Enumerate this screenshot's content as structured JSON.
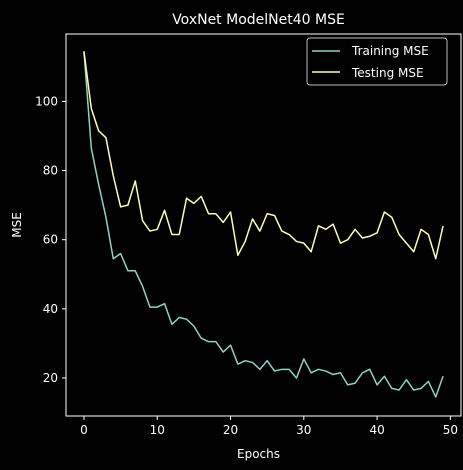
{
  "chart_data": {
    "type": "line",
    "title": "VoxNet ModelNet40 MSE",
    "xlabel": "Epochs",
    "ylabel": "MSE",
    "xlim": [
      -2.45,
      51.45
    ],
    "ylim": [
      9,
      119.5
    ],
    "xticks": [
      0,
      10,
      20,
      30,
      40,
      50
    ],
    "yticks": [
      20,
      40,
      60,
      80,
      100
    ],
    "grid": false,
    "legend_position": "top-right",
    "x": [
      0,
      1,
      2,
      3,
      4,
      5,
      6,
      7,
      8,
      9,
      10,
      11,
      12,
      13,
      14,
      15,
      16,
      17,
      18,
      19,
      20,
      21,
      22,
      23,
      24,
      25,
      26,
      27,
      28,
      29,
      30,
      31,
      32,
      33,
      34,
      35,
      36,
      37,
      38,
      39,
      40,
      41,
      42,
      43,
      44,
      45,
      46,
      47,
      48,
      49
    ],
    "series": [
      {
        "name": "Training MSE",
        "color": "#8dd3c7",
        "values": [
          114.5,
          86.5,
          76,
          66.5,
          54.5,
          56,
          51,
          51,
          46.5,
          40.5,
          40.5,
          41.5,
          35.5,
          37.5,
          37,
          35,
          31.5,
          30.5,
          30.5,
          27.5,
          29.5,
          24,
          25,
          24.5,
          22.5,
          25,
          22,
          22.5,
          22.5,
          20,
          25.5,
          21.5,
          22.5,
          22,
          21,
          21.5,
          18,
          18.5,
          21.5,
          22.5,
          18,
          20.5,
          17,
          16.5,
          19.5,
          16.5,
          17,
          19,
          14.5,
          20.5
        ]
      },
      {
        "name": "Testing MSE",
        "color": "#ffffb3",
        "values": [
          114.5,
          98,
          91.5,
          89.5,
          78.5,
          69.5,
          70,
          77,
          65.5,
          62.5,
          63,
          68.5,
          61.5,
          61.5,
          72,
          70.5,
          72.5,
          67.5,
          67.5,
          65,
          68,
          55.5,
          59.5,
          66,
          62.5,
          67.5,
          67,
          62.5,
          61.5,
          59.5,
          59,
          56.5,
          64,
          63,
          64.5,
          59,
          60,
          63,
          60.5,
          61,
          62,
          68,
          66.5,
          61.5,
          59,
          56.5,
          63,
          61.5,
          54.5,
          64
        ]
      }
    ]
  }
}
